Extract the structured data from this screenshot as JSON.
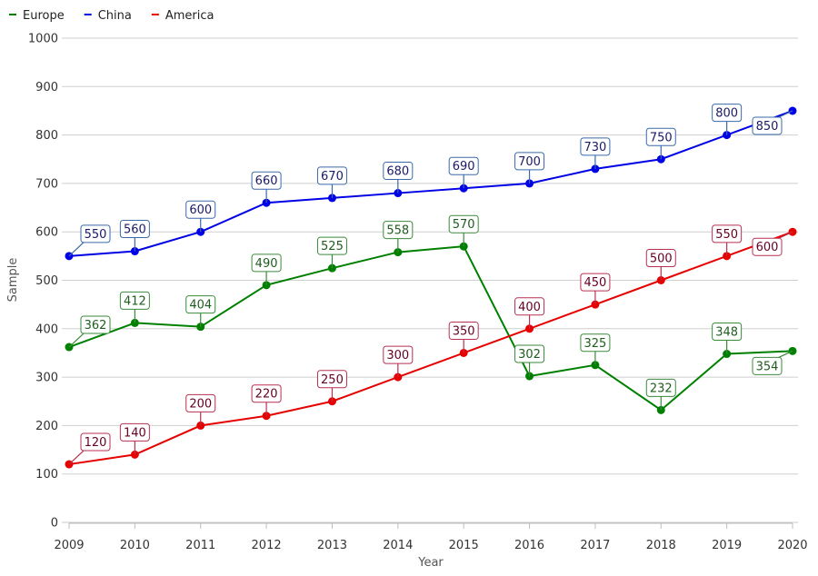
{
  "chart_data": {
    "type": "line",
    "xlabel": "Year",
    "ylabel": "Sample",
    "ylim": [
      0,
      1000
    ],
    "yticks": [
      0,
      100,
      200,
      300,
      400,
      500,
      600,
      700,
      800,
      900,
      1000
    ],
    "x": [
      "2009",
      "2010",
      "2011",
      "2012",
      "2013",
      "2014",
      "2015",
      "2016",
      "2017",
      "2018",
      "2019",
      "2020"
    ],
    "grid": true,
    "legend_position": "top-left",
    "series": [
      {
        "name": "Europe",
        "color": "#008000",
        "values": [
          362,
          412,
          404,
          490,
          525,
          558,
          570,
          302,
          325,
          232,
          348,
          354
        ]
      },
      {
        "name": "China",
        "color": "#0000e6",
        "values": [
          550,
          560,
          600,
          660,
          670,
          680,
          690,
          700,
          730,
          750,
          800,
          850
        ]
      },
      {
        "name": "America",
        "color": "#e60000",
        "values": [
          120,
          140,
          200,
          220,
          250,
          300,
          350,
          400,
          450,
          500,
          550,
          600
        ]
      }
    ]
  }
}
